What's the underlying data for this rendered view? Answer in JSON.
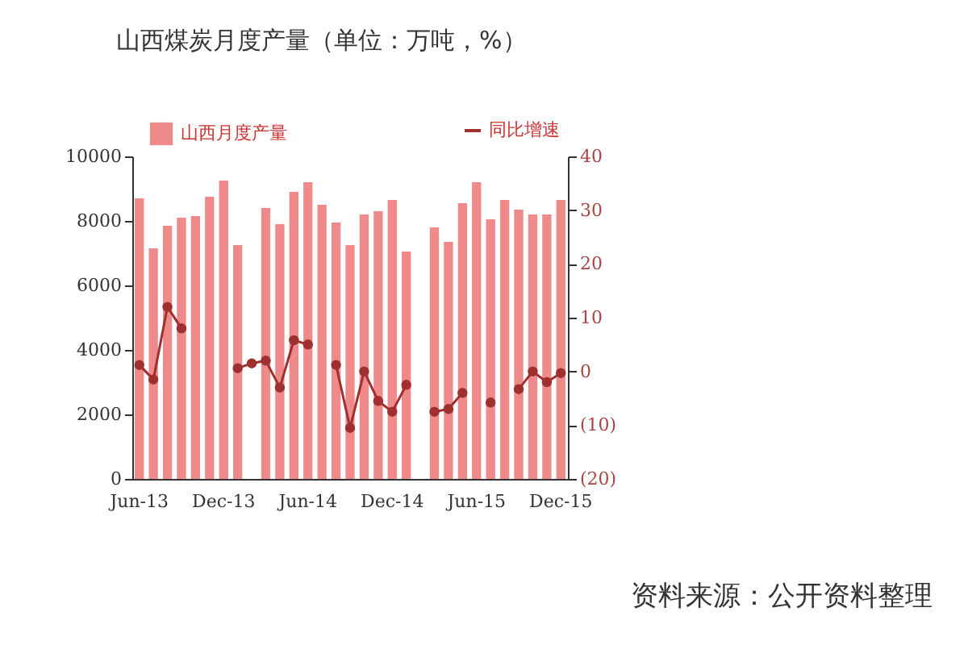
{
  "chart_data": {
    "type": "bar",
    "title": "山西煤炭月度产量（单位：万吨，%）",
    "categories": [
      "Jun-13",
      null,
      null,
      null,
      null,
      null,
      "Dec-13",
      null,
      null,
      null,
      null,
      null,
      "Jun-14",
      null,
      null,
      null,
      null,
      null,
      "Dec-14",
      null,
      null,
      null,
      null,
      null,
      "Jun-15",
      null,
      null,
      null,
      null,
      null,
      "Dec-15"
    ],
    "series": [
      {
        "name": "山西月度产量",
        "color": "#ee8a8a",
        "values": [
          8700,
          7150,
          7850,
          8100,
          8150,
          8750,
          9250,
          7250,
          null,
          8400,
          7900,
          8900,
          9200,
          8500,
          7950,
          7250,
          8200,
          8300,
          8650,
          7050,
          null,
          7800,
          7350,
          8550,
          9200,
          8050,
          8650,
          8350,
          8200,
          8200,
          8650
        ]
      },
      {
        "name": "同比增速",
        "type": "line",
        "axis": "y2",
        "color": "#a03030",
        "values": [
          1.2,
          -1.5,
          12,
          8,
          null,
          null,
          null,
          0.6,
          1.5,
          2,
          -3,
          5.8,
          5,
          null,
          1.2,
          -10.5,
          0,
          -5.5,
          -7.5,
          -2.5,
          null,
          -7.5,
          -7,
          -4,
          null,
          -5.8,
          null,
          -3.3,
          0,
          -2,
          -0.3
        ]
      }
    ],
    "ylim": [
      0,
      10000
    ],
    "yticks": [
      0,
      2000,
      4000,
      6000,
      8000,
      10000
    ],
    "y2lim": [
      -20,
      40
    ],
    "y2ticks": [
      {
        "value": -20,
        "label": "(20)"
      },
      {
        "value": -10,
        "label": "(10)"
      },
      0,
      10,
      20,
      30,
      40
    ],
    "marker": "circle",
    "legend": "top",
    "grid": false,
    "annotations": [
      "资料来源：公开资料整理"
    ]
  }
}
